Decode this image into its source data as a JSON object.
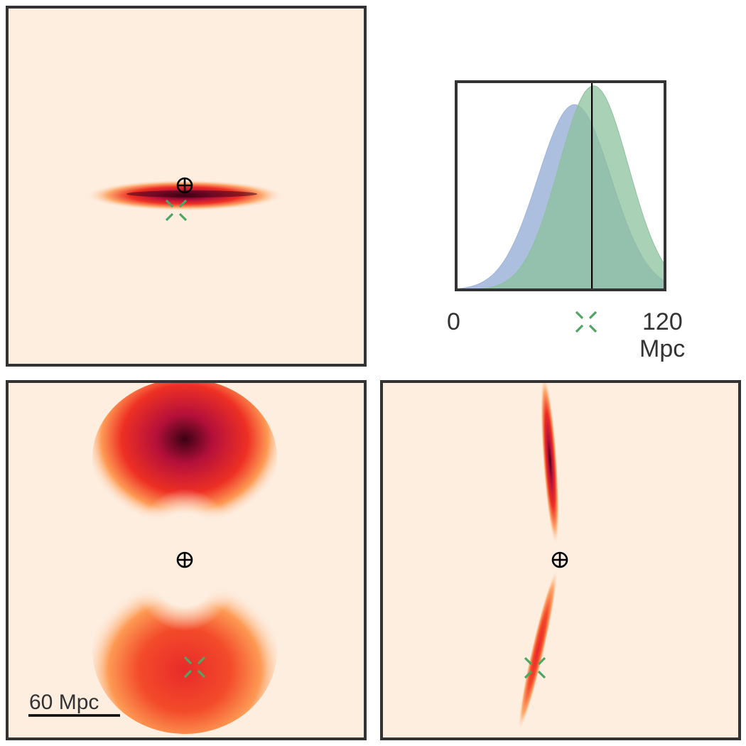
{
  "colors": {
    "frame": "#333333",
    "background": "#fdeee0",
    "heat_dark": "#3b0214",
    "heat_crimson": "#b5103a",
    "heat_red": "#ee3024",
    "heat_orange": "#fc8a3c",
    "observer_marker": "#000000",
    "true_position_marker": "#4fa564",
    "distribution_blue": "#9fb4d8",
    "distribution_green": "#8cc19c"
  },
  "markers": {
    "observer": "earth-crosshair-icon",
    "true_position": "green-x-icon"
  },
  "distance_axis": {
    "min_label": "0",
    "max_label": "120",
    "unit": "Mpc",
    "range": [
      0,
      120
    ],
    "true_distance": 78,
    "median_line": 78
  },
  "distributions": [
    {
      "color": "blue",
      "mean": 68,
      "sd": 21,
      "peak": 0.89
    },
    {
      "color": "green",
      "mean": 79,
      "sd": 20,
      "peak": 0.98
    }
  ],
  "scale_bar": {
    "label": "60 Mpc"
  }
}
